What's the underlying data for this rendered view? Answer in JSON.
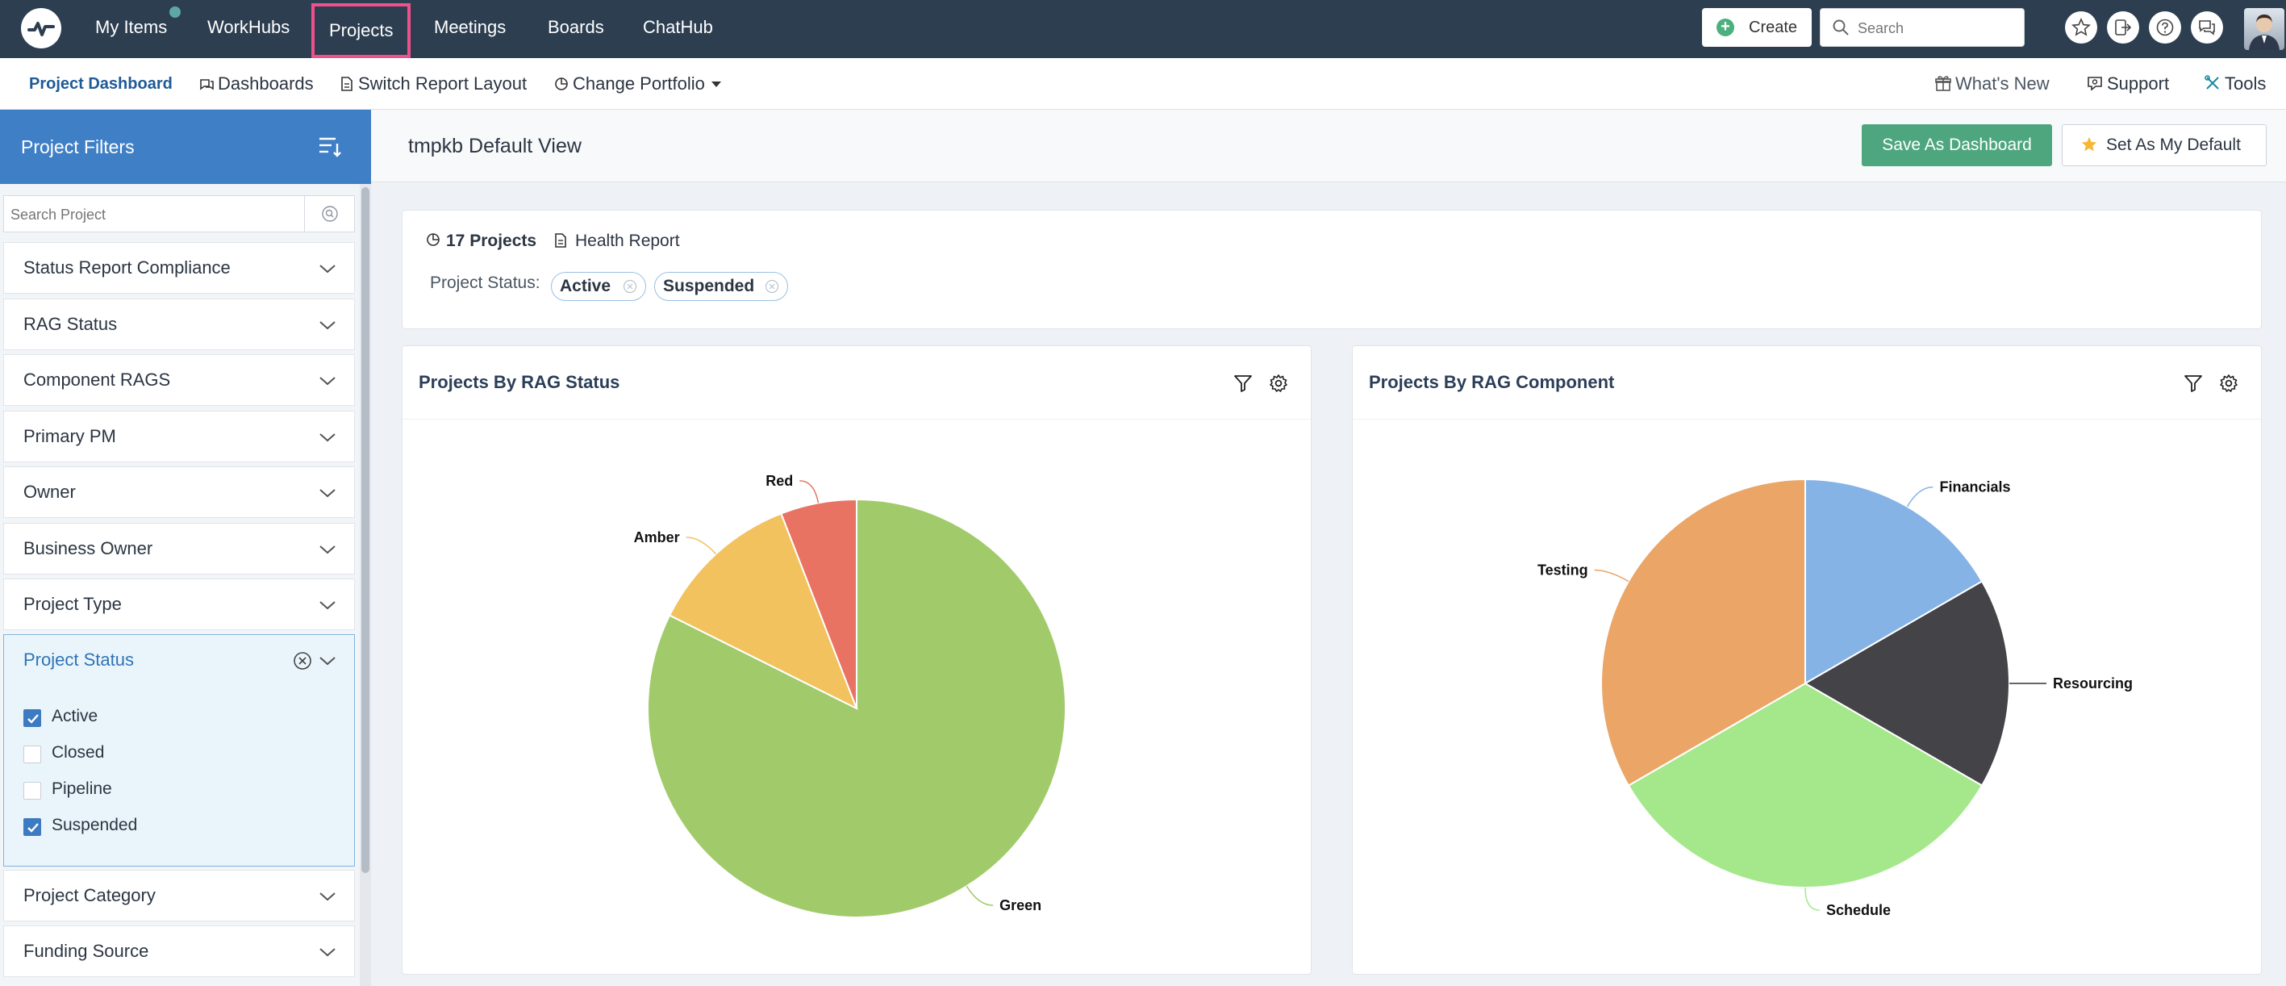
{
  "nav": {
    "items": [
      "My Items",
      "WorkHubs",
      "Projects",
      "Meetings",
      "Boards",
      "ChatHub"
    ],
    "active": "Projects",
    "create_label": "Create",
    "search_placeholder": "Search"
  },
  "subnav": {
    "project_dashboard": "Project Dashboard",
    "dashboards": "Dashboards",
    "switch_layout": "Switch Report Layout",
    "change_portfolio": "Change Portfolio",
    "whats_new": "What's New",
    "support": "Support",
    "tools": "Tools"
  },
  "sidebar": {
    "title": "Project Filters",
    "search_placeholder": "Search Project",
    "filters": [
      "Status Report Compliance",
      "RAG Status",
      "Component RAGS",
      "Primary PM",
      "Owner",
      "Business Owner",
      "Project Type",
      "Project Status",
      "Project Category",
      "Funding Source"
    ],
    "project_status_options": [
      {
        "label": "Active",
        "checked": true
      },
      {
        "label": "Closed",
        "checked": false
      },
      {
        "label": "Pipeline",
        "checked": false
      },
      {
        "label": "Suspended",
        "checked": true
      }
    ]
  },
  "main": {
    "view_title": "tmpkb Default View",
    "save_dashboard": "Save As Dashboard",
    "set_default": "Set As My Default",
    "project_count": "17 Projects",
    "health_report": "Health Report",
    "status_label": "Project Status:",
    "status_chips": [
      "Active",
      "Suspended"
    ]
  },
  "chart_data": [
    {
      "type": "pie",
      "title": "Projects By RAG Status",
      "slices": [
        {
          "label": "Green",
          "value": 14,
          "color": "#a1cb6a"
        },
        {
          "label": "Amber",
          "value": 2,
          "color": "#f2c25f"
        },
        {
          "label": "Red",
          "value": 1,
          "color": "#e97362"
        }
      ]
    },
    {
      "type": "pie",
      "title": "Projects By RAG Component",
      "slices": [
        {
          "label": "Financials",
          "value": 1,
          "color": "#85b3e6"
        },
        {
          "label": "Resourcing",
          "value": 1,
          "color": "#434348"
        },
        {
          "label": "Schedule",
          "value": 2,
          "color": "#a5e88c"
        },
        {
          "label": "Testing",
          "value": 2,
          "color": "#eba566"
        }
      ]
    }
  ]
}
